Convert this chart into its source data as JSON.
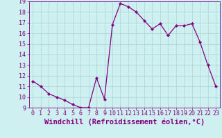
{
  "x": [
    0,
    1,
    2,
    3,
    4,
    5,
    6,
    7,
    8,
    9,
    10,
    11,
    12,
    13,
    14,
    15,
    16,
    17,
    18,
    19,
    20,
    21,
    22,
    23
  ],
  "y": [
    11.5,
    11.0,
    10.3,
    10.0,
    9.7,
    9.3,
    9.0,
    9.0,
    11.8,
    9.8,
    16.8,
    18.8,
    18.5,
    18.0,
    17.2,
    16.4,
    16.9,
    15.8,
    16.7,
    16.7,
    16.9,
    15.2,
    13.0,
    11.0
  ],
  "line_color": "#800080",
  "marker": "D",
  "marker_size": 2,
  "bg_color": "#cff0f0",
  "grid_color": "#aad4d4",
  "xlabel": "Windchill (Refroidissement éolien,°C)",
  "ylim": [
    9,
    19
  ],
  "xlim": [
    -0.5,
    23.5
  ],
  "yticks": [
    9,
    10,
    11,
    12,
    13,
    14,
    15,
    16,
    17,
    18,
    19
  ],
  "xticks": [
    0,
    1,
    2,
    3,
    4,
    5,
    6,
    7,
    8,
    9,
    10,
    11,
    12,
    13,
    14,
    15,
    16,
    17,
    18,
    19,
    20,
    21,
    22,
    23
  ],
  "tick_label_size": 6,
  "xlabel_size": 7.5,
  "label_color": "#800080",
  "axis_color": "#800080"
}
